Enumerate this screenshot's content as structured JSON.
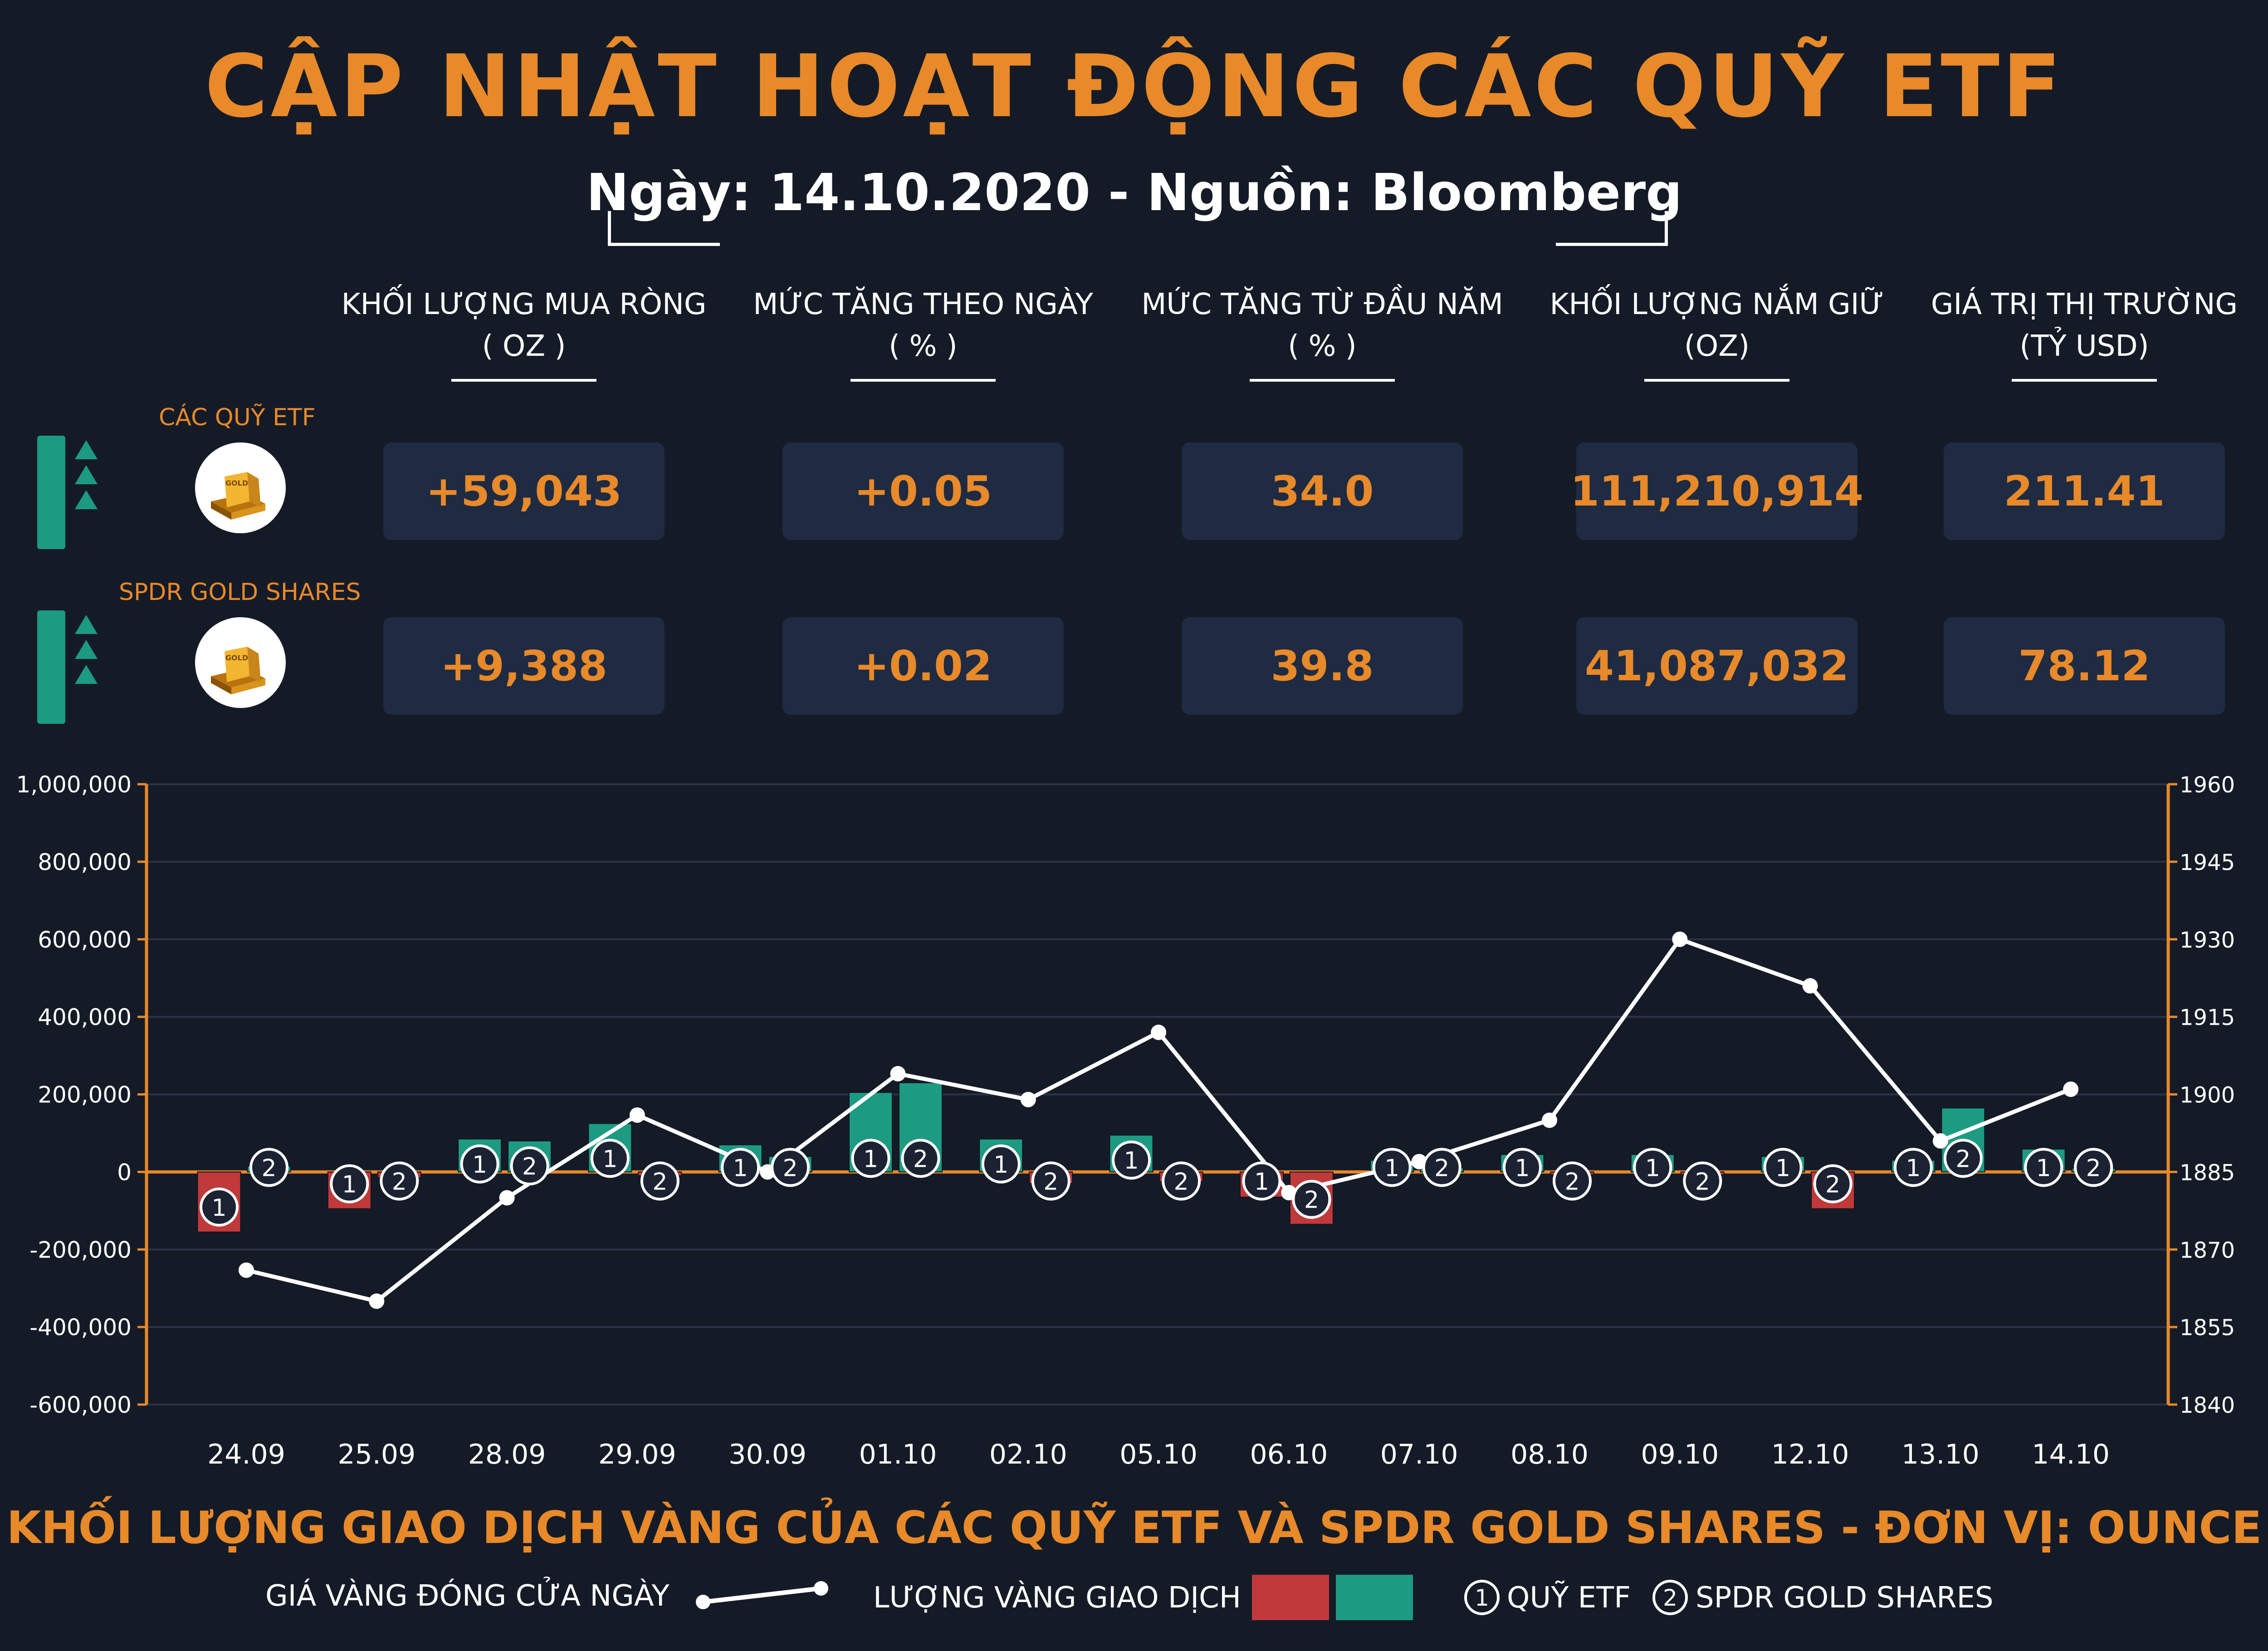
{
  "header": {
    "title": "CẬP NHẬT HOẠT ĐỘNG CÁC QUỸ ETF",
    "subtitle": "Ngày: 14.10.2020 - Nguồn: Bloomberg"
  },
  "table": {
    "columns": [
      {
        "line1": "KHỐI LƯỢNG MUA RÒNG",
        "line2": "( OZ )"
      },
      {
        "line1": "MỨC TĂNG THEO NGÀY",
        "line2": "( % )"
      },
      {
        "line1": "MỨC TĂNG TỪ ĐẦU NĂM",
        "line2": "( % )"
      },
      {
        "line1": "KHỐI LƯỢNG NẮM GIỮ",
        "line2": "(OZ)"
      },
      {
        "line1": "GIÁ TRỊ THỊ TRƯỜNG",
        "line2": "(TỶ USD)"
      }
    ],
    "rows": [
      {
        "label": "CÁC QUỸ ETF",
        "values": [
          "+59,043",
          "+0.05",
          "34.0",
          "111,210,914",
          "211.41"
        ]
      },
      {
        "label": "SPDR GOLD SHARES",
        "values": [
          "+9,388",
          "+0.02",
          "39.8",
          "41,087,032",
          "78.12"
        ]
      }
    ],
    "coin_text": "GOLD"
  },
  "colors": {
    "accent": "#e8892a",
    "background": "#141b27",
    "positive": "#1d9a82",
    "negative": "#c0393b",
    "line": "#ffffff"
  },
  "chart_data": {
    "type": "bar",
    "categories": [
      "24.09",
      "25.09",
      "28.09",
      "29.09",
      "30.09",
      "01.10",
      "02.10",
      "05.10",
      "06.10",
      "07.10",
      "08.10",
      "09.10",
      "12.10",
      "13.10",
      "14.10"
    ],
    "series": [
      {
        "name": "QUỸ ETF",
        "marker": "1",
        "axis": "left",
        "values": [
          -155000,
          -95000,
          85000,
          125000,
          70000,
          205000,
          85000,
          95000,
          -65000,
          30000,
          45000,
          45000,
          40000,
          30000,
          59043
        ]
      },
      {
        "name": "SPDR GOLD SHARES",
        "marker": "2",
        "axis": "left",
        "values": [
          15000,
          -15000,
          80000,
          -10000,
          40000,
          230000,
          -30000,
          -25000,
          -135000,
          10000,
          -5000,
          -5000,
          -95000,
          165000,
          9388
        ]
      },
      {
        "name": "GIÁ VÀNG ĐÓNG CỬA NGÀY",
        "type": "line",
        "axis": "right",
        "values": [
          1866,
          1860,
          1880,
          1896,
          1885,
          1904,
          1899,
          1912,
          1881,
          1887,
          1895,
          1930,
          1921,
          1891,
          1901
        ]
      }
    ],
    "ylim": [
      -600000,
      1000000
    ],
    "y_ticks": [
      "1,000,000",
      "800,000",
      "600,000",
      "400,000",
      "200,000",
      "0",
      "-200,000",
      "-400,000",
      "-600,000"
    ],
    "y2lim": [
      1840,
      1960
    ],
    "y2_ticks": [
      "1960",
      "1945",
      "1930",
      "1915",
      "1900",
      "1885",
      "1870",
      "1855",
      "1840"
    ],
    "title": "KHỐI LƯỢNG GIAO DỊCH VÀNG CỦA CÁC QUỸ ETF VÀ SPDR GOLD SHARES - ĐƠN VỊ: OUNCE",
    "legend": {
      "price_line": "GIÁ VÀNG ĐÓNG CỬA NGÀY",
      "bars": "LƯỢNG VÀNG GIAO DỊCH",
      "m1": "1",
      "m1_label": "QUỸ ETF",
      "m2": "2",
      "m2_label": "SPDR GOLD SHARES"
    }
  }
}
